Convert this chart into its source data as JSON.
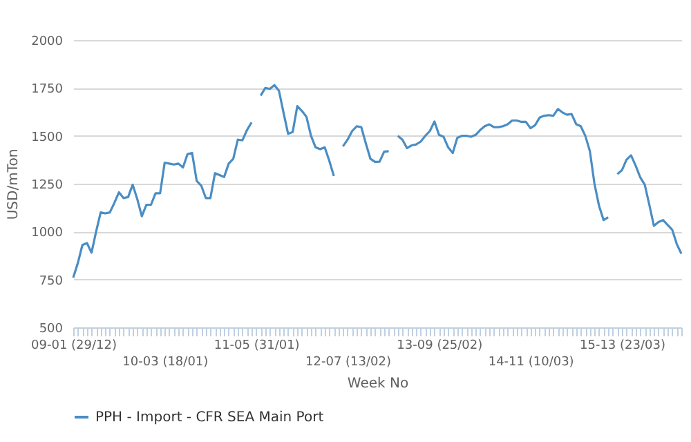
{
  "chart_data": {
    "type": "line",
    "xlabel": "Week No",
    "ylabel": "USD/mTon",
    "categories": [
      "09-01 (29/12)",
      null,
      null,
      null,
      null,
      null,
      null,
      null,
      null,
      null,
      null,
      null,
      null,
      null,
      null,
      null,
      null,
      null,
      null,
      null,
      "10-03 (18/01)",
      null,
      null,
      null,
      null,
      null,
      null,
      null,
      null,
      null,
      null,
      null,
      null,
      null,
      null,
      null,
      null,
      null,
      null,
      null,
      "11-05 (31/01)",
      null,
      null,
      null,
      null,
      null,
      null,
      null,
      null,
      null,
      null,
      null,
      null,
      null,
      null,
      null,
      null,
      null,
      null,
      null,
      "12-07 (13/02)",
      null,
      null,
      null,
      null,
      null,
      null,
      null,
      null,
      null,
      null,
      null,
      null,
      null,
      null,
      null,
      null,
      null,
      null,
      null,
      "13-09 (25/02)",
      null,
      null,
      null,
      null,
      null,
      null,
      null,
      null,
      null,
      null,
      null,
      null,
      null,
      null,
      null,
      null,
      null,
      null,
      null,
      "14-11 (10/03)",
      null,
      null,
      null,
      null,
      null,
      null,
      null,
      null,
      null,
      null,
      null,
      null,
      null,
      null,
      null,
      null,
      null,
      null,
      null,
      "15-13 (23/03)",
      null,
      null,
      null,
      null,
      null,
      null,
      null,
      null,
      null,
      null,
      null,
      null,
      null
    ],
    "series": [
      {
        "name": "PPH - Import - CFR SEA Main Port",
        "color": "#4a8dc4",
        "values": [
          760,
          835,
          930,
          940,
          890,
          1000,
          1100,
          1095,
          1100,
          1150,
          1205,
          1175,
          1180,
          1245,
          1170,
          1080,
          1140,
          1140,
          1200,
          1200,
          1360,
          1355,
          1350,
          1355,
          1335,
          1405,
          1410,
          1265,
          1240,
          1175,
          1175,
          1305,
          1295,
          1285,
          1355,
          1380,
          1480,
          1477,
          1530,
          1570,
          null,
          1710,
          1750,
          1745,
          1765,
          1735,
          1620,
          1510,
          1520,
          1655,
          1630,
          1600,
          1500,
          1440,
          1430,
          1440,
          1370,
          1290,
          null,
          1445,
          1480,
          1525,
          1550,
          1545,
          1460,
          1380,
          1364,
          1365,
          1417,
          1420,
          null,
          1500,
          1480,
          1436,
          1450,
          1455,
          1470,
          1500,
          1525,
          1575,
          1505,
          1495,
          1440,
          1410,
          1490,
          1500,
          1500,
          1495,
          1505,
          1530,
          1550,
          1560,
          1545,
          1545,
          1550,
          1560,
          1580,
          1580,
          1573,
          1573,
          1540,
          1555,
          1595,
          1605,
          1608,
          1605,
          1640,
          1622,
          1610,
          1614,
          1561,
          1550,
          1500,
          1420,
          1250,
          1135,
          1060,
          1075,
          null,
          1300,
          1320,
          1375,
          1398,
          1345,
          1284,
          1245,
          1140,
          1030,
          1050,
          1060,
          1035,
          1010,
          935,
          885
        ]
      }
    ],
    "ylim": [
      500,
      2000
    ],
    "yticks": [
      500,
      750,
      1000,
      1250,
      1500,
      1750,
      2000
    ],
    "grid": "y",
    "legend": "bottom",
    "marker": "none",
    "line_style": "solid"
  }
}
